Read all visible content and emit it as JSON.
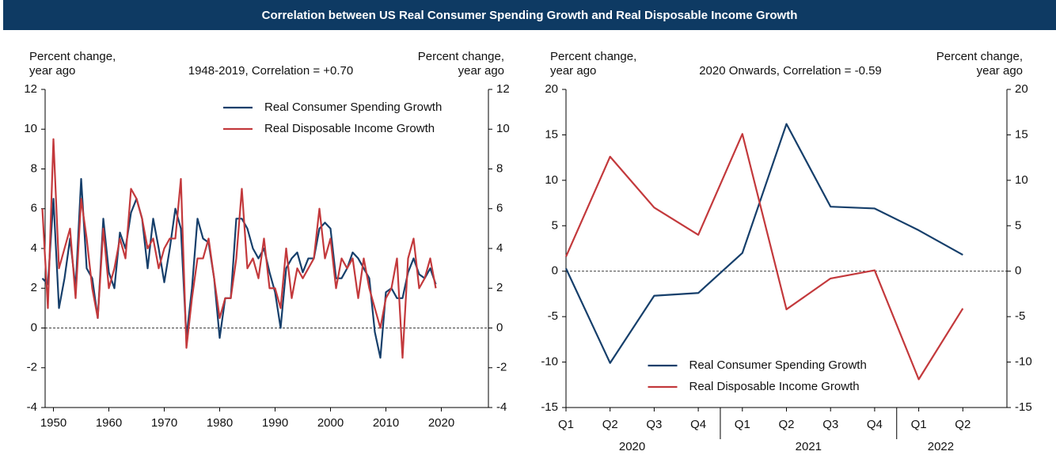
{
  "header": {
    "title": "Correlation between US Real Consumer Spending Growth and Real Disposable Income Growth"
  },
  "chart_data": [
    {
      "type": "line",
      "ylabel": [
        "Percent change,",
        "year ago"
      ],
      "y2label": [
        "Percent change,",
        "year ago"
      ],
      "annotation": "1948-2019, Correlation = +0.70",
      "legend": "upper right",
      "x": [
        1948,
        1949,
        1950,
        1951,
        1952,
        1953,
        1954,
        1955,
        1956,
        1957,
        1958,
        1959,
        1960,
        1961,
        1962,
        1963,
        1964,
        1965,
        1966,
        1967,
        1968,
        1969,
        1970,
        1971,
        1972,
        1973,
        1974,
        1975,
        1976,
        1977,
        1978,
        1979,
        1980,
        1981,
        1982,
        1983,
        1984,
        1985,
        1986,
        1987,
        1988,
        1989,
        1990,
        1991,
        1992,
        1993,
        1994,
        1995,
        1996,
        1997,
        1998,
        1999,
        2000,
        2001,
        2002,
        2003,
        2004,
        2005,
        2006,
        2007,
        2008,
        2009,
        2010,
        2011,
        2012,
        2013,
        2014,
        2015,
        2016,
        2017,
        2018,
        2019
      ],
      "xlim": [
        1948.5,
        2028.5
      ],
      "xticks": [
        1950,
        1960,
        1970,
        1980,
        1990,
        2000,
        2010,
        2020
      ],
      "ylim": [
        -4,
        12
      ],
      "yticks": [
        -4,
        -2,
        0,
        2,
        4,
        6,
        8,
        10,
        12
      ],
      "y2lim": [
        -4,
        12
      ],
      "y2ticks": [
        -4,
        -2,
        0,
        2,
        4,
        6,
        8,
        10,
        12
      ],
      "series": [
        {
          "name": "Real Consumer Spending Growth",
          "color": "#163f6b",
          "values": [
            2.5,
            2.2,
            6.5,
            1.0,
            2.5,
            4.5,
            2.0,
            7.5,
            3.0,
            2.5,
            0.5,
            5.5,
            2.8,
            2.0,
            4.8,
            4.0,
            5.8,
            6.5,
            5.5,
            3.0,
            5.5,
            4.0,
            2.3,
            4.0,
            6.0,
            5.0,
            -0.5,
            2.0,
            5.5,
            4.5,
            4.3,
            2.5,
            -0.5,
            1.5,
            1.5,
            5.5,
            5.5,
            5.0,
            4.0,
            3.5,
            4.0,
            2.8,
            1.8,
            0.0,
            3.0,
            3.5,
            3.8,
            2.8,
            3.5,
            3.5,
            5.0,
            5.3,
            5.0,
            2.5,
            2.5,
            3.0,
            3.8,
            3.5,
            3.0,
            2.5,
            -0.2,
            -1.5,
            1.8,
            2.0,
            1.5,
            1.5,
            2.8,
            3.5,
            2.7,
            2.5,
            3.0,
            2.2
          ]
        },
        {
          "name": "Real Disposable Income Growth",
          "color": "#c3393c",
          "values": [
            6.0,
            1.0,
            9.5,
            3.0,
            4.0,
            5.0,
            1.5,
            6.5,
            4.5,
            2.0,
            0.5,
            5.0,
            2.0,
            3.0,
            4.5,
            3.5,
            7.0,
            6.5,
            5.5,
            4.0,
            4.5,
            3.0,
            4.0,
            4.5,
            4.5,
            7.5,
            -1.0,
            1.5,
            3.5,
            3.5,
            4.5,
            2.5,
            0.5,
            1.5,
            1.5,
            3.5,
            7.0,
            3.0,
            3.5,
            2.5,
            4.5,
            2.0,
            2.0,
            1.0,
            4.0,
            1.5,
            3.0,
            2.5,
            3.0,
            3.5,
            6.0,
            3.5,
            4.5,
            2.0,
            3.5,
            3.0,
            3.5,
            1.5,
            3.5,
            2.0,
            1.0,
            0.0,
            1.5,
            2.0,
            3.5,
            -1.5,
            3.5,
            4.5,
            2.0,
            2.5,
            3.5,
            2.0
          ]
        }
      ]
    },
    {
      "type": "line",
      "ylabel": [
        "Percent change,",
        "year ago"
      ],
      "y2label": [
        "Percent change,",
        "year ago"
      ],
      "annotation": "2020 Onwards, Correlation = -0.59",
      "legend": "lower center",
      "categories": [
        "Q1",
        "Q2",
        "Q3",
        "Q4",
        "Q1",
        "Q2",
        "Q3",
        "Q4",
        "Q1",
        "Q2"
      ],
      "group_labels": [
        "2020",
        "2021",
        "2022"
      ],
      "ylim": [
        -15,
        20
      ],
      "yticks": [
        -15,
        -10,
        -5,
        0,
        5,
        10,
        15,
        20
      ],
      "y2lim": [
        -15,
        20
      ],
      "y2ticks": [
        -15,
        -10,
        -5,
        0,
        5,
        10,
        15,
        20
      ],
      "series": [
        {
          "name": "Real Consumer Spending Growth",
          "color": "#163f6b",
          "values": [
            0.3,
            -10.1,
            -2.7,
            -2.4,
            2.0,
            16.2,
            7.1,
            6.9,
            4.5,
            1.8
          ]
        },
        {
          "name": "Real Disposable Income Growth",
          "color": "#c3393c",
          "values": [
            1.6,
            12.6,
            7.0,
            4.0,
            15.1,
            -4.2,
            -0.8,
            0.1,
            -11.9,
            -4.1
          ]
        }
      ]
    }
  ]
}
